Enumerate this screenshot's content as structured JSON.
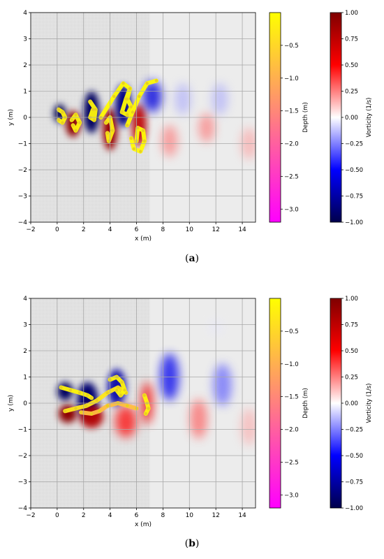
{
  "panels": [
    {
      "caption_open": "(",
      "caption_letter": "a",
      "caption_close": ")",
      "chart_data": {
        "type": "heatmap",
        "title": "",
        "xlabel": "x (m)",
        "ylabel": "y (m)",
        "xlim": [
          -2,
          15
        ],
        "ylim": [
          -4,
          4
        ],
        "xticks": [
          -2,
          0,
          2,
          4,
          6,
          8,
          10,
          12,
          14
        ],
        "yticks": [
          -4,
          -3,
          -2,
          -1,
          0,
          1,
          2,
          3,
          4
        ],
        "grid": true,
        "shaded_region_x": [
          -2,
          7
        ],
        "vortices": [
          {
            "x": 0.2,
            "y": 0.15,
            "vorticity": -1.0,
            "rx": 0.45,
            "ry": 0.35
          },
          {
            "x": 1.2,
            "y": -0.25,
            "vorticity": 0.95,
            "rx": 0.55,
            "ry": 0.5
          },
          {
            "x": 2.6,
            "y": 0.2,
            "vorticity": -0.95,
            "rx": 0.6,
            "ry": 0.8
          },
          {
            "x": 4.0,
            "y": -0.45,
            "vorticity": 0.9,
            "rx": 0.55,
            "ry": 0.8
          },
          {
            "x": 5.0,
            "y": 0.45,
            "vorticity": -0.85,
            "rx": 0.6,
            "ry": 0.8
          },
          {
            "x": 6.2,
            "y": -0.3,
            "vorticity": 0.75,
            "rx": 0.55,
            "ry": 0.8
          },
          {
            "x": 7.2,
            "y": 0.8,
            "vorticity": -0.6,
            "rx": 0.7,
            "ry": 0.6
          },
          {
            "x": 8.5,
            "y": -0.9,
            "vorticity": 0.3,
            "rx": 0.6,
            "ry": 0.6
          },
          {
            "x": 9.5,
            "y": 0.7,
            "vorticity": -0.2,
            "rx": 0.6,
            "ry": 0.6
          },
          {
            "x": 11.3,
            "y": -0.4,
            "vorticity": 0.3,
            "rx": 0.6,
            "ry": 0.55
          },
          {
            "x": 12.3,
            "y": 0.7,
            "vorticity": -0.2,
            "rx": 0.6,
            "ry": 0.6
          },
          {
            "x": 14.5,
            "y": -1.0,
            "vorticity": 0.22,
            "rx": 0.6,
            "ry": 0.6
          }
        ],
        "particle_tracks": [
          {
            "depth": -0.15,
            "points": [
              [
                0.1,
                0.3
              ],
              [
                0.4,
                0.2
              ],
              [
                0.6,
                0.0
              ],
              [
                0.4,
                -0.2
              ],
              [
                0.1,
                -0.1
              ]
            ]
          },
          {
            "depth": -0.1,
            "points": [
              [
                1.1,
                -0.1
              ],
              [
                1.4,
                0.1
              ],
              [
                1.7,
                -0.2
              ],
              [
                1.4,
                -0.5
              ],
              [
                1.2,
                -0.3
              ]
            ]
          },
          {
            "depth": -0.1,
            "points": [
              [
                2.5,
                0.6
              ],
              [
                2.9,
                0.3
              ],
              [
                2.8,
                -0.1
              ],
              [
                2.5,
                0.0
              ],
              [
                2.7,
                0.3
              ]
            ]
          },
          {
            "depth": -0.2,
            "points": [
              [
                3.7,
                -0.2
              ],
              [
                4.0,
                0.0
              ],
              [
                4.2,
                -0.5
              ],
              [
                3.9,
                -0.9
              ],
              [
                3.8,
                -0.6
              ]
            ]
          },
          {
            "depth": -0.05,
            "points": [
              [
                3.3,
                0.0
              ],
              [
                4.3,
                0.8
              ],
              [
                5.0,
                1.3
              ],
              [
                5.5,
                1.1
              ],
              [
                5.2,
                0.7
              ],
              [
                4.9,
                0.2
              ],
              [
                5.3,
                0.1
              ],
              [
                5.6,
                0.4
              ],
              [
                5.3,
                0.7
              ],
              [
                5.5,
                1.1
              ]
            ]
          },
          {
            "depth": -0.05,
            "points": [
              [
                5.3,
                -0.3
              ],
              [
                5.7,
                0.2
              ],
              [
                6.2,
                0.8
              ],
              [
                6.8,
                1.3
              ],
              [
                7.5,
                1.4
              ]
            ]
          },
          {
            "depth": -0.05,
            "points": [
              [
                5.6,
                -0.8
              ],
              [
                5.8,
                -1.2
              ],
              [
                6.3,
                -1.3
              ],
              [
                6.6,
                -0.9
              ],
              [
                6.5,
                -0.5
              ],
              [
                6.1,
                -0.4
              ],
              [
                6.0,
                -0.9
              ]
            ]
          }
        ],
        "colorbars": [
          {
            "label": "Depth (m)",
            "ticks": [
              -0.5,
              -1.0,
              -1.5,
              -2.0,
              -2.5,
              -3.0
            ],
            "tick_labels": [
              "−0.5",
              "−1.0",
              "−1.5",
              "−2.0",
              "−2.5",
              "−3.0"
            ],
            "range": [
              -3.2,
              0.0
            ],
            "colors": [
              "#ff00ff",
              "#ffff00"
            ]
          },
          {
            "label": "Vorticity (1/s)",
            "ticks": [
              -1.0,
              -0.75,
              -0.5,
              -0.25,
              0.0,
              0.25,
              0.5,
              0.75,
              1.0
            ],
            "tick_labels": [
              "−1.00",
              "−0.75",
              "−0.50",
              "−0.25",
              "0.00",
              "0.25",
              "0.50",
              "0.75",
              "1.00"
            ],
            "range": [
              -1.0,
              1.0
            ],
            "colors": [
              "#00004c",
              "#0000ff",
              "#ffffff",
              "#ff0000",
              "#7f0000"
            ]
          }
        ]
      }
    },
    {
      "caption_open": "(",
      "caption_letter": "b",
      "caption_close": ")",
      "chart_data": {
        "type": "heatmap",
        "title": "",
        "xlabel": "x (m)",
        "ylabel": "y (m)",
        "xlim": [
          -2,
          15
        ],
        "ylim": [
          -4,
          4
        ],
        "xticks": [
          -2,
          0,
          2,
          4,
          6,
          8,
          10,
          12,
          14
        ],
        "yticks": [
          -4,
          -3,
          -2,
          -1,
          0,
          1,
          2,
          3,
          4
        ],
        "grid": true,
        "shaded_region_x": [
          -2,
          7
        ],
        "vortices": [
          {
            "x": 0.6,
            "y": 0.45,
            "vorticity": -0.95,
            "rx": 0.6,
            "ry": 0.35
          },
          {
            "x": 0.8,
            "y": -0.4,
            "vorticity": 0.95,
            "rx": 0.7,
            "ry": 0.35
          },
          {
            "x": 2.3,
            "y": 0.1,
            "vorticity": -0.9,
            "rx": 0.8,
            "ry": 0.7
          },
          {
            "x": 2.6,
            "y": -0.5,
            "vorticity": 0.8,
            "rx": 0.9,
            "ry": 0.45
          },
          {
            "x": 4.5,
            "y": 0.6,
            "vorticity": -0.75,
            "rx": 0.7,
            "ry": 0.7
          },
          {
            "x": 5.2,
            "y": -0.7,
            "vorticity": 0.5,
            "rx": 0.8,
            "ry": 0.6
          },
          {
            "x": 6.8,
            "y": 0.0,
            "vorticity": 0.55,
            "rx": 0.45,
            "ry": 0.8
          },
          {
            "x": 8.5,
            "y": 1.0,
            "vorticity": -0.55,
            "rx": 0.7,
            "ry": 0.9
          },
          {
            "x": 10.7,
            "y": -0.6,
            "vorticity": 0.35,
            "rx": 0.65,
            "ry": 0.75
          },
          {
            "x": 12.5,
            "y": 0.7,
            "vorticity": -0.35,
            "rx": 0.7,
            "ry": 0.8
          },
          {
            "x": 14.5,
            "y": -0.9,
            "vorticity": 0.2,
            "rx": 0.6,
            "ry": 0.7
          },
          {
            "x": 12.0,
            "y": 2.9,
            "vorticity": -0.05,
            "rx": 0.6,
            "ry": 0.3
          }
        ],
        "particle_tracks": [
          {
            "depth": -0.1,
            "points": [
              [
                0.3,
                0.6
              ],
              [
                1.0,
                0.5
              ],
              [
                1.7,
                0.4
              ],
              [
                2.3,
                0.3
              ],
              [
                2.6,
                0.2
              ]
            ]
          },
          {
            "depth": -0.3,
            "points": [
              [
                0.6,
                -0.3
              ],
              [
                1.4,
                -0.2
              ],
              [
                2.2,
                -0.1
              ],
              [
                3.0,
                0.1
              ],
              [
                3.8,
                0.4
              ],
              [
                4.6,
                0.6
              ],
              [
                5.2,
                0.4
              ]
            ]
          },
          {
            "depth": -0.8,
            "points": [
              [
                1.8,
                -0.35
              ],
              [
                2.6,
                -0.4
              ],
              [
                3.2,
                -0.3
              ],
              [
                3.8,
                -0.1
              ],
              [
                4.6,
                0.0
              ],
              [
                5.3,
                -0.1
              ],
              [
                6.0,
                -0.2
              ]
            ]
          },
          {
            "depth": -0.1,
            "points": [
              [
                4.0,
                0.9
              ],
              [
                4.5,
                1.0
              ],
              [
                4.9,
                0.8
              ],
              [
                5.1,
                0.5
              ],
              [
                4.8,
                0.3
              ],
              [
                4.5,
                0.5
              ]
            ]
          },
          {
            "depth": -0.15,
            "points": [
              [
                6.6,
                0.3
              ],
              [
                6.8,
                0.0
              ],
              [
                6.9,
                -0.2
              ],
              [
                6.7,
                -0.4
              ]
            ]
          }
        ],
        "colorbars": [
          {
            "label": "Depth (m)",
            "ticks": [
              -0.5,
              -1.0,
              -1.5,
              -2.0,
              -2.5,
              -3.0
            ],
            "tick_labels": [
              "−0.5",
              "−1.0",
              "−1.5",
              "−2.0",
              "−2.5",
              "−3.0"
            ],
            "range": [
              -3.2,
              0.0
            ],
            "colors": [
              "#ff00ff",
              "#ffff00"
            ]
          },
          {
            "label": "Vorticity (1/s)",
            "ticks": [
              -1.0,
              -0.75,
              -0.5,
              -0.25,
              0.0,
              0.25,
              0.5,
              0.75,
              1.0
            ],
            "tick_labels": [
              "−1.00",
              "−0.75",
              "−0.50",
              "−0.25",
              "0.00",
              "0.25",
              "0.50",
              "0.75",
              "1.00"
            ],
            "range": [
              -1.0,
              1.0
            ],
            "colors": [
              "#00004c",
              "#0000ff",
              "#ffffff",
              "#ff0000",
              "#7f0000"
            ]
          }
        ]
      }
    }
  ]
}
